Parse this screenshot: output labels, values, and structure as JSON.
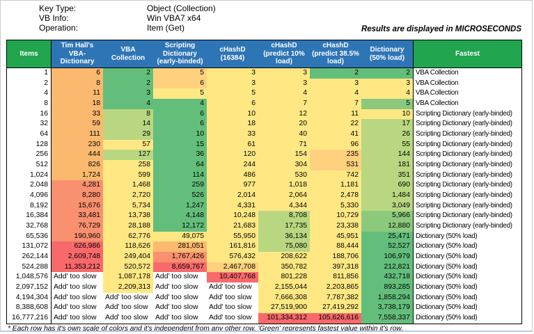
{
  "meta": {
    "key_type_label": "Key Type:",
    "key_type_value": "Object (Collection)",
    "vb_info_label": "VB Info:",
    "vb_info_value": "Win VBA7 x64",
    "operation_label": "Operation:",
    "operation_value": "Item (Get)",
    "units_note": "Results are displayed in MICROSECONDS",
    "footnote": "* Each row has it's own scale of colors and it's independent from any other row. 'Green' represents fastest value within it's row."
  },
  "colors": {
    "green_header": "#21A54E",
    "blue_header": "#2E75B6",
    "palette": {
      "g": "#63BE7B",
      "g2": "#8BCA7D",
      "lg": "#B9D780",
      "y": "#FFE884",
      "yo": "#FFD17E",
      "o": "#FBB96F",
      "or": "#F9906F",
      "r": "#F8696B",
      "w": "#FFFFFF"
    }
  },
  "table": {
    "columns": [
      "Items",
      "Tim Hall's VBA-Dictionary",
      "VBA Collection",
      "Scripting Dictionary (early-binded)",
      "cHashD (16384)",
      "cHashD (predict 10% load)",
      "cHashD (predict 38.5% load)",
      "Dictionary (50% load)",
      "Fastest"
    ],
    "rows": [
      {
        "items": "1",
        "values": [
          "6",
          "2",
          "5",
          "3",
          "3",
          "2",
          "2"
        ],
        "colors": [
          "o",
          "g",
          "yo",
          "y",
          "y",
          "g",
          "g"
        ],
        "fastest": "VBA Collection"
      },
      {
        "items": "2",
        "values": [
          "8",
          "2",
          "6",
          "3",
          "3",
          "3",
          "3"
        ],
        "colors": [
          "o",
          "g",
          "yo",
          "y",
          "y",
          "y",
          "y"
        ],
        "fastest": "VBA Collection"
      },
      {
        "items": "4",
        "values": [
          "11",
          "3",
          "5",
          "5",
          "4",
          "4",
          "4"
        ],
        "colors": [
          "o",
          "g",
          "y",
          "y",
          "y",
          "y",
          "y"
        ],
        "fastest": "VBA Collection"
      },
      {
        "items": "8",
        "values": [
          "18",
          "4",
          "4",
          "6",
          "7",
          "7",
          "5"
        ],
        "colors": [
          "o",
          "g",
          "g",
          "y",
          "y",
          "y",
          "g2"
        ],
        "fastest": "VBA Collection"
      },
      {
        "items": "16",
        "values": [
          "33",
          "8",
          "6",
          "10",
          "12",
          "11",
          "10"
        ],
        "colors": [
          "o",
          "lg",
          "g",
          "y",
          "y",
          "y",
          "y"
        ],
        "fastest": "Scripting Dictionary (early-binded)"
      },
      {
        "items": "32",
        "values": [
          "59",
          "14",
          "6",
          "18",
          "20",
          "22",
          "17"
        ],
        "colors": [
          "o",
          "lg",
          "g",
          "y",
          "y",
          "y",
          "lg"
        ],
        "fastest": "Scripting Dictionary (early-binded)"
      },
      {
        "items": "64",
        "values": [
          "111",
          "29",
          "10",
          "33",
          "40",
          "41",
          "26"
        ],
        "colors": [
          "o",
          "lg",
          "g",
          "y",
          "y",
          "y",
          "lg"
        ],
        "fastest": "Scripting Dictionary (early-binded)"
      },
      {
        "items": "128",
        "values": [
          "230",
          "57",
          "15",
          "61",
          "71",
          "96",
          "55"
        ],
        "colors": [
          "o",
          "y",
          "g",
          "y",
          "y",
          "y",
          "lg"
        ],
        "fastest": "Scripting Dictionary (early-binded)"
      },
      {
        "items": "256",
        "values": [
          "444",
          "127",
          "36",
          "120",
          "154",
          "235",
          "144"
        ],
        "colors": [
          "o",
          "lg",
          "g",
          "y",
          "y",
          "yo",
          "lg"
        ],
        "fastest": "Scripting Dictionary (early-binded)"
      },
      {
        "items": "512",
        "values": [
          "826",
          "258",
          "64",
          "244",
          "304",
          "531",
          "181"
        ],
        "colors": [
          "o",
          "y",
          "g",
          "y",
          "y",
          "yo",
          "lg"
        ],
        "fastest": "Scripting Dictionary (early-binded)"
      },
      {
        "items": "1,024",
        "values": [
          "1,724",
          "599",
          "114",
          "486",
          "530",
          "742",
          "351"
        ],
        "colors": [
          "o",
          "y",
          "g",
          "y",
          "y",
          "y",
          "lg"
        ],
        "fastest": "Scripting Dictionary (early-binded)"
      },
      {
        "items": "2,048",
        "values": [
          "4,281",
          "1,468",
          "259",
          "977",
          "1,018",
          "1,181",
          "690"
        ],
        "colors": [
          "or",
          "y",
          "g",
          "y",
          "y",
          "y",
          "lg"
        ],
        "fastest": "Scripting Dictionary (early-binded)"
      },
      {
        "items": "4,096",
        "values": [
          "8,280",
          "2,720",
          "526",
          "2,014",
          "2,064",
          "2,478",
          "1,484"
        ],
        "colors": [
          "or",
          "y",
          "g",
          "y",
          "y",
          "y",
          "lg"
        ],
        "fastest": "Scripting Dictionary (early-binded)"
      },
      {
        "items": "8,192",
        "values": [
          "15,676",
          "5,734",
          "1,247",
          "4,331",
          "4,344",
          "5,330",
          "3,049"
        ],
        "colors": [
          "or",
          "y",
          "g",
          "y",
          "y",
          "y",
          "lg"
        ],
        "fastest": "Scripting Dictionary (early-binded)"
      },
      {
        "items": "16,384",
        "values": [
          "33,481",
          "13,738",
          "4,148",
          "10,248",
          "8,708",
          "10,729",
          "5,966"
        ],
        "colors": [
          "or",
          "y",
          "g",
          "y",
          "lg",
          "y",
          "g2"
        ],
        "fastest": "Scripting Dictionary (early-binded)"
      },
      {
        "items": "32,768",
        "values": [
          "76,729",
          "28,188",
          "12,172",
          "21,683",
          "17,735",
          "23,338",
          "12,880"
        ],
        "colors": [
          "or",
          "y",
          "g",
          "y",
          "lg",
          "y",
          "g2"
        ],
        "fastest": "Scripting Dictionary (early-binded)"
      },
      {
        "items": "65,536",
        "values": [
          "190,960",
          "62,776",
          "49,075",
          "55,950",
          "36,134",
          "45,951",
          "25,471"
        ],
        "colors": [
          "or",
          "y",
          "y",
          "y",
          "lg",
          "y",
          "g"
        ],
        "fastest": "Dictionary (50% load)"
      },
      {
        "items": "131,072",
        "values": [
          "626,986",
          "118,626",
          "281,051",
          "161,816",
          "75,080",
          "88,444",
          "52,527"
        ],
        "colors": [
          "r",
          "y",
          "o",
          "y",
          "lg",
          "y",
          "g"
        ],
        "fastest": "Dictionary (50% load)"
      },
      {
        "items": "262,144",
        "values": [
          "2,609,748",
          "249,404",
          "1,767,426",
          "576,432",
          "208,622",
          "188,706",
          "106,979"
        ],
        "colors": [
          "r",
          "y",
          "or",
          "y",
          "y",
          "y",
          "g"
        ],
        "fastest": "Dictionary (50% load)"
      },
      {
        "items": "524,288",
        "values": [
          "11,353,212",
          "520,572",
          "8,659,767",
          "2,467,708",
          "350,782",
          "397,318",
          "212,821"
        ],
        "colors": [
          "r",
          "y",
          "r",
          "yo",
          "y",
          "y",
          "g"
        ],
        "fastest": "Dictionary (50% load)"
      },
      {
        "items": "1,048,576",
        "values": [
          "Add' too slow",
          "1,087,178",
          "Add' too slow",
          "10,407,768",
          "801,228",
          "811,856",
          "432,718"
        ],
        "colors": [
          "w",
          "y",
          "w",
          "r",
          "y",
          "y",
          "g"
        ],
        "fastest": "Dictionary (50% load)"
      },
      {
        "items": "2,097,152",
        "values": [
          "Add' too slow",
          "2,209,313",
          "Add' too slow",
          "Add' too slow",
          "2,155,044",
          "2,203,865",
          "893,285"
        ],
        "colors": [
          "w",
          "y",
          "w",
          "w",
          "y",
          "y",
          "g"
        ],
        "fastest": "Dictionary (50% load)"
      },
      {
        "items": "4,194,304",
        "values": [
          "Add' too slow",
          "Add' too slow",
          "Add' too slow",
          "Add' too slow",
          "7,666,308",
          "7,787,382",
          "1,858,294"
        ],
        "colors": [
          "w",
          "w",
          "w",
          "w",
          "y",
          "y",
          "g"
        ],
        "fastest": "Dictionary (50% load)"
      },
      {
        "items": "8,388,608",
        "values": [
          "Add' too slow",
          "Add' too slow",
          "Add' too slow",
          "Add' too slow",
          "27,519,900",
          "27,419,292",
          "3,738,179"
        ],
        "colors": [
          "w",
          "w",
          "w",
          "w",
          "y",
          "y",
          "g"
        ],
        "fastest": "Dictionary (50% load)"
      },
      {
        "items": "16,777,216",
        "values": [
          "Add' too slow",
          "Add' too slow",
          "Add' too slow",
          "Add' too slow",
          "101,334,312",
          "105,626,616",
          "7,558,337"
        ],
        "colors": [
          "w",
          "w",
          "w",
          "w",
          "r",
          "r",
          "g"
        ],
        "fastest": "Dictionary (50% load)"
      }
    ]
  }
}
